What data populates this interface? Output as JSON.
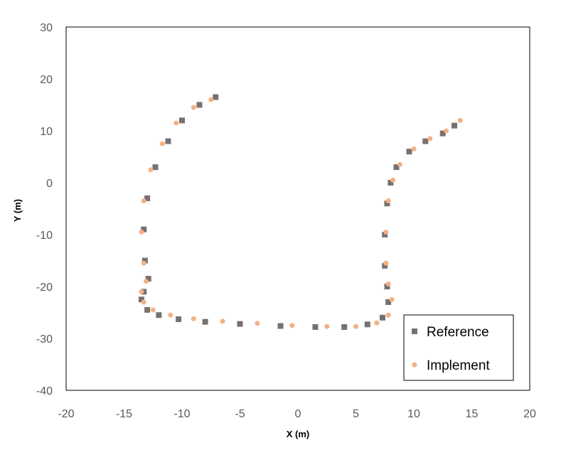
{
  "chart_data": {
    "type": "scatter",
    "title": "",
    "xlabel": "X (m)",
    "ylabel": "Y (m)",
    "xlim": [
      -20,
      20
    ],
    "ylim": [
      -40,
      30
    ],
    "xticks": [
      -20,
      -15,
      -10,
      -5,
      0,
      5,
      10,
      15,
      20
    ],
    "yticks": [
      -40,
      -30,
      -20,
      -10,
      0,
      10,
      20,
      30
    ],
    "grid": false,
    "legend_position": "bottom-right",
    "series": [
      {
        "name": "Reference",
        "marker": "square",
        "color": "#767171",
        "x": [
          -7.1,
          -8.5,
          -10.0,
          -11.2,
          -12.3,
          -13.0,
          -13.3,
          -13.2,
          -12.9,
          -13.3,
          -13.5,
          -13.0,
          -12.0,
          -10.3,
          -8.0,
          -5.0,
          -1.5,
          1.5,
          4.0,
          6.0,
          7.3,
          7.8,
          7.7,
          7.5,
          7.5,
          7.7,
          8.0,
          8.5,
          9.6,
          11.0,
          12.5,
          13.5
        ],
        "y": [
          16.5,
          15.0,
          12.0,
          8.0,
          3.0,
          -3.0,
          -9.0,
          -15.0,
          -18.5,
          -21.0,
          -22.5,
          -24.5,
          -25.5,
          -26.3,
          -26.8,
          -27.2,
          -27.6,
          -27.8,
          -27.8,
          -27.3,
          -26.0,
          -23.0,
          -20.0,
          -16.0,
          -10.0,
          -4.0,
          0.0,
          3.0,
          6.0,
          8.0,
          9.5,
          11.0
        ]
      },
      {
        "name": "Implement",
        "marker": "circle",
        "color": "#F4B183",
        "x": [
          -7.5,
          -9.0,
          -10.5,
          -11.7,
          -12.7,
          -13.3,
          -13.5,
          -13.3,
          -13.1,
          -13.5,
          -13.3,
          -12.5,
          -11.0,
          -9.0,
          -6.5,
          -3.5,
          -0.5,
          2.5,
          5.0,
          6.8,
          7.8,
          8.1,
          7.8,
          7.6,
          7.6,
          7.8,
          8.2,
          8.8,
          10.0,
          11.4,
          12.8,
          14.0
        ],
        "y": [
          16.0,
          14.5,
          11.5,
          7.5,
          2.5,
          -3.5,
          -9.5,
          -15.5,
          -19.0,
          -21.0,
          -23.0,
          -24.5,
          -25.5,
          -26.2,
          -26.7,
          -27.1,
          -27.5,
          -27.7,
          -27.7,
          -27.0,
          -25.5,
          -22.5,
          -19.5,
          -15.5,
          -9.5,
          -3.5,
          0.5,
          3.5,
          6.5,
          8.5,
          10.0,
          12.0
        ]
      }
    ]
  }
}
